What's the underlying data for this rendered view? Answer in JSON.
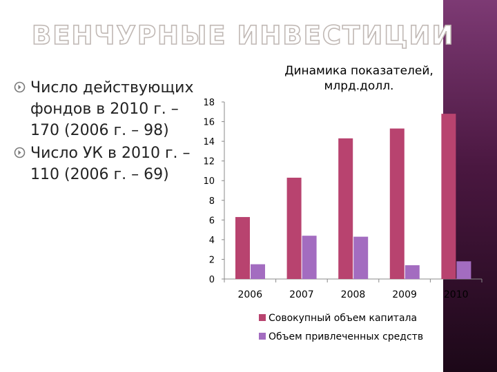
{
  "slide": {
    "title": "ВЕНЧУРНЫЕ ИНВЕСТИЦИИ",
    "bullets": [
      {
        "icon": "circle-arrow-bullet-icon",
        "text": "Число действующих фондов в 2010 г. – 170 (2006 г. – 98)"
      },
      {
        "icon": "circle-arrow-bullet-icon",
        "text": "Число УК в 2010 г. – 110 (2006 г. – 69)"
      }
    ],
    "colors": {
      "accent_band": "#4a1740",
      "bullet": "#7a7a7a"
    }
  },
  "chart_data": {
    "type": "bar",
    "title": "Динамика показателей, млрд.долл.",
    "categories": [
      "2006",
      "2007",
      "2008",
      "2009",
      "2010"
    ],
    "series": [
      {
        "name": "Совокупный объем капитала",
        "color": "#b8436f",
        "values": [
          6.3,
          10.3,
          14.3,
          15.3,
          16.8
        ]
      },
      {
        "name": "Объем привлеченных средств",
        "color": "#a36cc0",
        "values": [
          1.5,
          4.4,
          4.3,
          1.4,
          1.8
        ]
      }
    ],
    "ylim": [
      0,
      18
    ],
    "yticks": [
      0,
      2,
      4,
      6,
      8,
      10,
      12,
      14,
      16,
      18
    ],
    "grid": false,
    "legend_position": "bottom"
  }
}
